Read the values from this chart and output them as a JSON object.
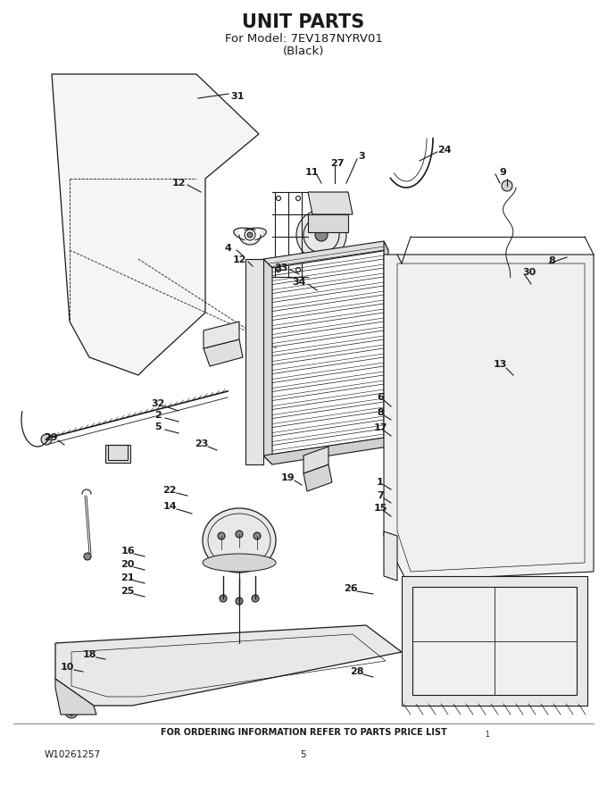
{
  "title": "UNIT PARTS",
  "subtitle1": "For Model: 7EV187NYRV01",
  "subtitle2": "(Black)",
  "footer_left": "W10261257",
  "footer_center": "5",
  "footer_bottom": "FOR ORDERING INFORMATION REFER TO PARTS PRICE LIST",
  "footer_super": "1",
  "bg_color": "#ffffff",
  "line_color": "#1a1a1a",
  "title_fontsize": 15,
  "subtitle_fontsize": 9.5,
  "footer_fontsize": 7.5,
  "fig_width": 6.8,
  "fig_height": 8.8,
  "dpi": 100
}
